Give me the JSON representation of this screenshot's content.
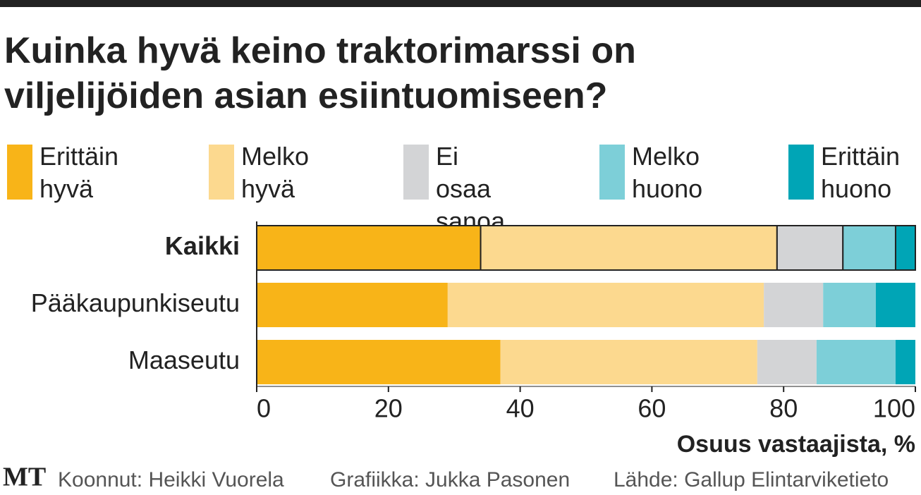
{
  "chart_data": {
    "type": "stacked_bar_horizontal",
    "title": "Kuinka hyvä keino traktorimarssi on viljelijöiden asian esiintuomiseen?",
    "categories": [
      "Kaikki",
      "Pääkaupunkiseutu",
      "Maaseutu"
    ],
    "series": [
      {
        "name": "Erittäin hyvä",
        "color": "#f8b418",
        "values": [
          34,
          29,
          37
        ]
      },
      {
        "name": "Melko hyvä",
        "color": "#fcd98f",
        "values": [
          45,
          48,
          39
        ]
      },
      {
        "name": "Ei osaa sanoa",
        "color": "#d3d4d6",
        "values": [
          10,
          9,
          9
        ]
      },
      {
        "name": "Melko huono",
        "color": "#7dcfd8",
        "values": [
          8,
          8,
          12
        ]
      },
      {
        "name": "Erittäin huono",
        "color": "#00a5b6",
        "values": [
          3,
          6,
          3
        ]
      }
    ],
    "xlim": [
      0,
      100
    ],
    "xticks": [
      0,
      20,
      40,
      60,
      80,
      100
    ],
    "x_label": "Osuus vastaajista, %",
    "footer": {
      "logo": "MT",
      "compiled": "Koonnut: Heikki Vuorela",
      "graphics": "Grafiikka: Jukka Pasonen",
      "source": "Lähde: Gallup Elintarviketieto"
    }
  }
}
